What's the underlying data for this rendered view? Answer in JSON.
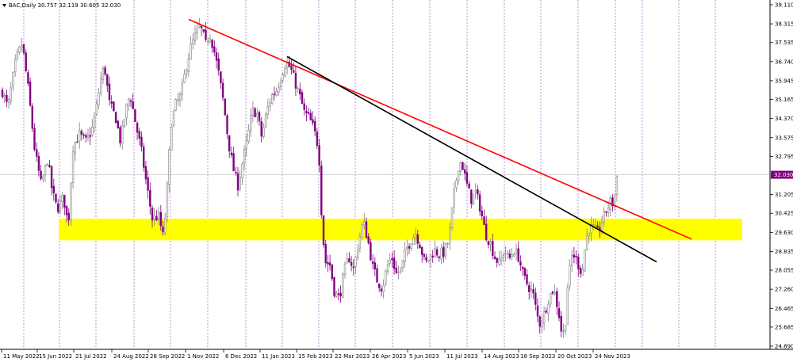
{
  "chart_data": {
    "type": "candlestick",
    "title": "BAC,Daily",
    "ohlc": {
      "open": "30.757",
      "high": "32.119",
      "low": "30.605",
      "close": "32.030"
    },
    "last_price": 32.03,
    "last_price_label": "32.030",
    "ylim": [
      24.5,
      39.5
    ],
    "y_ticks": [
      {
        "value": 39.11,
        "label": "39.110"
      },
      {
        "value": 38.315,
        "label": "38.315"
      },
      {
        "value": 37.535,
        "label": "37.535"
      },
      {
        "value": 36.74,
        "label": "36.740"
      },
      {
        "value": 35.945,
        "label": "35.945"
      },
      {
        "value": 35.165,
        "label": "35.165"
      },
      {
        "value": 34.37,
        "label": "34.370"
      },
      {
        "value": 33.575,
        "label": "33.575"
      },
      {
        "value": 32.795,
        "label": "32.795"
      },
      {
        "value": 31.205,
        "label": "31.205"
      },
      {
        "value": 30.425,
        "label": "30.425"
      },
      {
        "value": 29.63,
        "label": "29.630"
      },
      {
        "value": 28.835,
        "label": "28.835"
      },
      {
        "value": 28.055,
        "label": "28.055"
      },
      {
        "value": 27.26,
        "label": "27.260"
      },
      {
        "value": 26.465,
        "label": "26.465"
      },
      {
        "value": 25.685,
        "label": "25.685"
      },
      {
        "value": 24.89,
        "label": "24.890"
      }
    ],
    "x_ticks": [
      "11 May 2022",
      "15 Jun 2022",
      "21 Jul 2022",
      "24 Aug 2022",
      "28 Sep 2022",
      "1 Nov 2022",
      "6 Dec 2022",
      "11 Jan 2023",
      "15 Feb 2023",
      "22 Mar 2023",
      "26 Apr 2023",
      "5 Jun 2023",
      "11 Jul 2023",
      "14 Aug 2023",
      "18 Sep 2023",
      "20 Oct 2023",
      "24 Nov 2023"
    ],
    "price_path": [
      [
        0,
        35.8
      ],
      [
        10,
        34.8
      ],
      [
        20,
        36.8
      ],
      [
        28,
        37.5
      ],
      [
        36,
        35.5
      ],
      [
        44,
        33.0
      ],
      [
        52,
        31.6
      ],
      [
        60,
        32.7
      ],
      [
        66,
        31.3
      ],
      [
        72,
        30.6
      ],
      [
        80,
        31.1
      ],
      [
        86,
        29.9
      ],
      [
        92,
        33.2
      ],
      [
        100,
        33.7
      ],
      [
        108,
        33.4
      ],
      [
        116,
        33.9
      ],
      [
        122,
        34.9
      ],
      [
        128,
        36.2
      ],
      [
        132,
        36.5
      ],
      [
        138,
        35.0
      ],
      [
        146,
        34.4
      ],
      [
        152,
        33.4
      ],
      [
        158,
        34.6
      ],
      [
        164,
        35.4
      ],
      [
        172,
        34.0
      ],
      [
        178,
        33.1
      ],
      [
        184,
        31.8
      ],
      [
        192,
        30.2
      ],
      [
        200,
        30.3
      ],
      [
        206,
        29.4
      ],
      [
        210,
        31.0
      ],
      [
        216,
        34.2
      ],
      [
        222,
        35.0
      ],
      [
        228,
        35.3
      ],
      [
        234,
        36.4
      ],
      [
        240,
        37.3
      ],
      [
        246,
        37.8
      ],
      [
        252,
        38.2
      ],
      [
        256,
        37.9
      ],
      [
        260,
        37.4
      ],
      [
        264,
        38.0
      ],
      [
        270,
        37.2
      ],
      [
        276,
        36.2
      ],
      [
        282,
        35.0
      ],
      [
        288,
        33.4
      ],
      [
        294,
        32.3
      ],
      [
        300,
        31.6
      ],
      [
        306,
        32.6
      ],
      [
        312,
        33.5
      ],
      [
        318,
        34.7
      ],
      [
        324,
        34.6
      ],
      [
        330,
        33.6
      ],
      [
        336,
        34.6
      ],
      [
        342,
        35.3
      ],
      [
        348,
        35.5
      ],
      [
        354,
        36.1
      ],
      [
        360,
        36.7
      ],
      [
        366,
        36.5
      ],
      [
        372,
        35.9
      ],
      [
        378,
        35.3
      ],
      [
        384,
        34.6
      ],
      [
        390,
        34.4
      ],
      [
        396,
        33.9
      ],
      [
        402,
        33.1
      ],
      [
        406,
        30.0
      ],
      [
        410,
        28.4
      ],
      [
        416,
        28.3
      ],
      [
        422,
        27.1
      ],
      [
        428,
        26.9
      ],
      [
        434,
        28.0
      ],
      [
        440,
        28.6
      ],
      [
        446,
        28.1
      ],
      [
        452,
        29.2
      ],
      [
        458,
        30.1
      ],
      [
        464,
        29.3
      ],
      [
        470,
        28.2
      ],
      [
        476,
        27.6
      ],
      [
        482,
        27.3
      ],
      [
        488,
        28.2
      ],
      [
        494,
        28.6
      ],
      [
        500,
        27.9
      ],
      [
        506,
        28.1
      ],
      [
        512,
        28.9
      ],
      [
        518,
        29.3
      ],
      [
        524,
        29.6
      ],
      [
        530,
        29.1
      ],
      [
        536,
        28.3
      ],
      [
        542,
        28.6
      ],
      [
        548,
        28.9
      ],
      [
        554,
        28.7
      ],
      [
        560,
        28.8
      ],
      [
        566,
        29.3
      ],
      [
        572,
        31.1
      ],
      [
        578,
        32.4
      ],
      [
        582,
        32.6
      ],
      [
        588,
        31.7
      ],
      [
        594,
        31.0
      ],
      [
        600,
        31.3
      ],
      [
        606,
        30.6
      ],
      [
        612,
        29.6
      ],
      [
        618,
        29.2
      ],
      [
        624,
        28.6
      ],
      [
        630,
        28.3
      ],
      [
        636,
        28.9
      ],
      [
        642,
        28.5
      ],
      [
        648,
        28.9
      ],
      [
        654,
        28.6
      ],
      [
        660,
        27.8
      ],
      [
        666,
        27.4
      ],
      [
        672,
        27.1
      ],
      [
        676,
        26.4
      ],
      [
        680,
        25.8
      ],
      [
        686,
        26.2
      ],
      [
        692,
        26.9
      ],
      [
        698,
        27.3
      ],
      [
        704,
        26.4
      ],
      [
        708,
        25.5
      ],
      [
        712,
        25.4
      ],
      [
        716,
        27.5
      ],
      [
        722,
        28.8
      ],
      [
        728,
        28.4
      ],
      [
        734,
        27.9
      ],
      [
        738,
        29.1
      ],
      [
        742,
        29.8
      ],
      [
        748,
        29.8
      ],
      [
        754,
        29.6
      ],
      [
        758,
        30.0
      ],
      [
        764,
        30.5
      ],
      [
        770,
        30.9
      ],
      [
        774,
        30.8
      ],
      [
        778,
        32.0
      ]
    ],
    "annotations": [
      {
        "type": "trendline",
        "color": "#ff0000",
        "from": [
          238,
          38.5
        ],
        "to": [
          872,
          29.35
        ]
      },
      {
        "type": "trendline",
        "color": "#000000",
        "from": [
          362,
          36.95
        ],
        "to": [
          828,
          28.4
        ]
      },
      {
        "type": "zone",
        "color": "#ffff00",
        "x_range": [
          74,
          936
        ],
        "y_range": [
          29.3,
          30.2
        ]
      }
    ],
    "colors": {
      "up_candle": "#808080",
      "down_candle": "#800080",
      "grid": "#a040c0",
      "price_tag": "#800080"
    },
    "grid": "vertical dotted",
    "legend": "none"
  }
}
